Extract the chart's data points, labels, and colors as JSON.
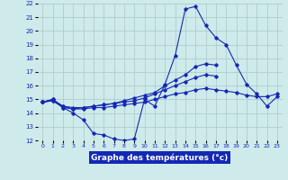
{
  "title": "Graphe des températures (°c)",
  "bg_color": "#ceeaea",
  "grid_color": "#aac8c8",
  "line_color": "#1428b4",
  "x_hours": [
    0,
    1,
    2,
    3,
    4,
    5,
    6,
    7,
    8,
    9,
    10,
    11,
    12,
    13,
    14,
    15,
    16,
    17,
    18,
    19,
    20,
    21,
    22,
    23
  ],
  "series1": [
    14.8,
    15.0,
    14.4,
    14.0,
    13.5,
    12.5,
    12.4,
    12.1,
    12.0,
    12.1,
    15.0,
    14.5,
    16.1,
    18.2,
    21.6,
    21.8,
    20.4,
    19.5,
    19.0,
    17.5,
    16.1,
    15.4,
    14.5,
    15.2
  ],
  "series2": [
    14.8,
    15.0,
    14.5,
    14.4,
    14.4,
    14.5,
    14.6,
    14.7,
    14.9,
    15.1,
    15.3,
    15.5,
    16.0,
    16.4,
    16.8,
    17.4,
    17.6,
    17.5,
    null,
    null,
    null,
    null,
    null,
    null
  ],
  "series3": [
    14.8,
    14.9,
    14.4,
    14.3,
    14.4,
    14.5,
    14.6,
    14.7,
    14.8,
    14.9,
    15.1,
    15.4,
    15.7,
    16.0,
    16.3,
    16.6,
    16.8,
    16.7,
    null,
    null,
    null,
    null,
    null,
    null
  ],
  "series4": [
    14.8,
    14.9,
    14.5,
    14.3,
    14.3,
    14.4,
    14.4,
    14.5,
    14.6,
    14.7,
    14.8,
    15.0,
    15.2,
    15.4,
    15.5,
    15.7,
    15.8,
    15.7,
    15.6,
    15.5,
    15.3,
    15.2,
    15.2,
    15.4
  ],
  "ylim": [
    12,
    22
  ],
  "yticks": [
    12,
    13,
    14,
    15,
    16,
    17,
    18,
    19,
    20,
    21,
    22
  ],
  "xticks": [
    0,
    1,
    2,
    3,
    4,
    5,
    6,
    7,
    8,
    9,
    10,
    11,
    12,
    13,
    14,
    15,
    16,
    17,
    18,
    19,
    20,
    21,
    22,
    23
  ],
  "xlabel_color": "#1428b4",
  "xlabel_text_color": "#ffffff"
}
